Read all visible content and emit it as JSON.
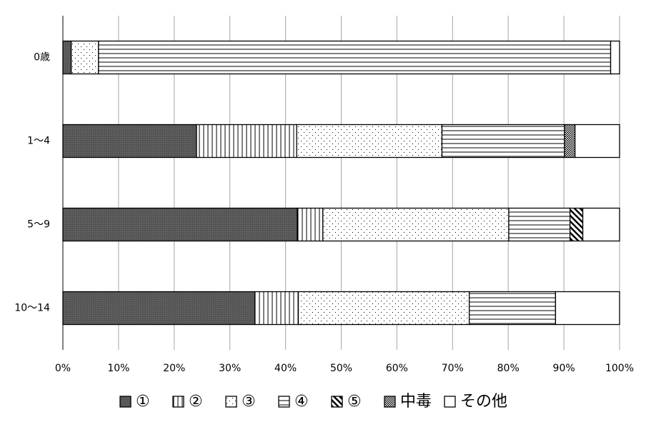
{
  "chart_data": {
    "type": "stacked_bar_horizontal",
    "categories": [
      "0歳",
      "1〜4",
      "5〜9",
      "10〜14"
    ],
    "series": [
      {
        "name": "①",
        "color": "#595959",
        "pattern": "solid",
        "values": [
          1.5,
          24.0,
          42.1,
          34.5
        ]
      },
      {
        "name": "②",
        "color": "#000000",
        "pattern": "vertical",
        "values": [
          0,
          18.0,
          4.6,
          7.8
        ]
      },
      {
        "name": "③",
        "color": "#000000",
        "pattern": "dots",
        "values": [
          4.9,
          26.1,
          33.4,
          30.7
        ]
      },
      {
        "name": "④",
        "color": "#000000",
        "pattern": "horizontal",
        "values": [
          92.0,
          22.0,
          11.0,
          15.5
        ]
      },
      {
        "name": "⑤",
        "color": "#000000",
        "pattern": "diagonal",
        "values": [
          0,
          0,
          2.3,
          0
        ]
      },
      {
        "name": "中毒",
        "color": "#000000",
        "pattern": "checker",
        "values": [
          0,
          1.9,
          0,
          0
        ]
      },
      {
        "name": "その他",
        "color": "#ffffff",
        "pattern": "none",
        "values": [
          1.6,
          8.0,
          6.6,
          11.5
        ]
      }
    ],
    "xlim": [
      0,
      100
    ],
    "xticks": [
      {
        "value": 0,
        "label": "0%"
      },
      {
        "value": 10,
        "label": "10%"
      },
      {
        "value": 20,
        "label": "20%"
      },
      {
        "value": 30,
        "label": "30%"
      },
      {
        "value": 40,
        "label": "40%"
      },
      {
        "value": 50,
        "label": "50%"
      },
      {
        "value": 60,
        "label": "60%"
      },
      {
        "value": 70,
        "label": "70%"
      },
      {
        "value": 80,
        "label": "80%"
      },
      {
        "value": 90,
        "label": "90%"
      },
      {
        "value": 100,
        "label": "100%"
      }
    ],
    "grid": true,
    "legend": "bottom"
  }
}
